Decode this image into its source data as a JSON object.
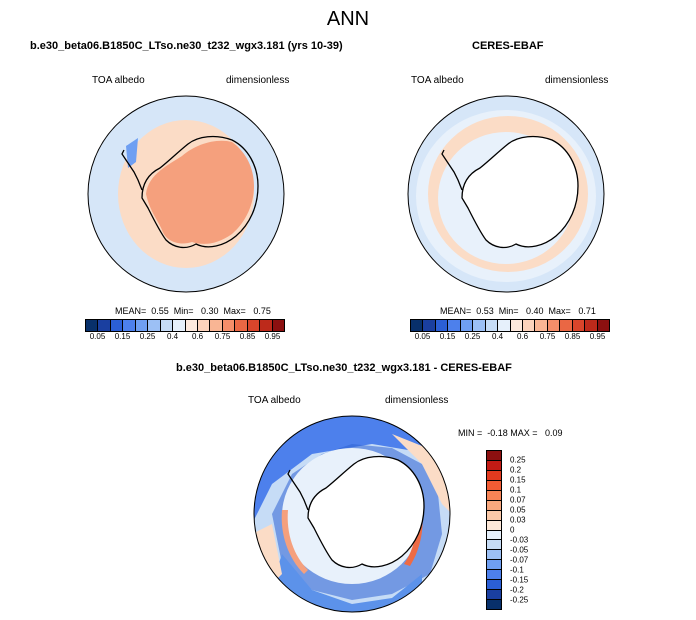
{
  "title": "ANN",
  "panels": [
    {
      "title": "b.e30_beta06.B1850C_LTso.ne30_t232_wgx3.181 (yrs 10-39)",
      "variable": "TOA albedo",
      "units": "dimensionless",
      "stats": "MEAN=  0.55  Min=   0.30  Max=   0.75"
    },
    {
      "title": "CERES-EBAF",
      "variable": "TOA albedo",
      "units": "dimensionless",
      "stats": "MEAN=  0.53  Min=   0.40  Max=   0.71"
    },
    {
      "title": "b.e30_beta06.B1850C_LTso.ne30_t232_wgx3.181 - CERES-EBAF",
      "variable": "TOA albedo",
      "units": "dimensionless",
      "stats": "MIN =  -0.18 MAX =   0.09"
    }
  ],
  "colorbar_abs": {
    "labels": [
      "0.05",
      "0.15",
      "0.25",
      "0.4",
      "0.6",
      "0.75",
      "0.85",
      "0.95"
    ],
    "colors": [
      "#08306b",
      "#1a3fa0",
      "#2b5fd6",
      "#4d80ec",
      "#6f9ff2",
      "#9cc0f5",
      "#c6dcf6",
      "#e6f0fb",
      "#fde9dd",
      "#fcd3bc",
      "#f9b594",
      "#f58e6a",
      "#ea6744",
      "#d9452b",
      "#bd2a1b",
      "#8c1010"
    ]
  },
  "colorbar_diff": {
    "labels": [
      "0.25",
      "0.2",
      "0.15",
      "0.1",
      "0.07",
      "0.05",
      "0.03",
      "0",
      "-0.03",
      "-0.05",
      "-0.07",
      "-0.1",
      "-0.15",
      "-0.2",
      "-0.25"
    ],
    "colors": [
      "#8c1010",
      "#c21b15",
      "#e23a1f",
      "#f25c34",
      "#f78456",
      "#f9a87e",
      "#fbc9a8",
      "#fde8d8",
      "#e6f0fb",
      "#c6dcf6",
      "#9cc0f5",
      "#6f9ff2",
      "#4d80ec",
      "#2b5fd6",
      "#1a3fa0",
      "#08306b"
    ]
  },
  "map_colors": {
    "ocean_light": "#d6e6f8",
    "ocean_pale": "#e8f1fb",
    "peach": "#fbdcc6",
    "salmon": "#f5a07d",
    "blue_mid": "#5c92ea",
    "blue_dark": "#2f63d4",
    "red_band": "#ee6b45"
  }
}
